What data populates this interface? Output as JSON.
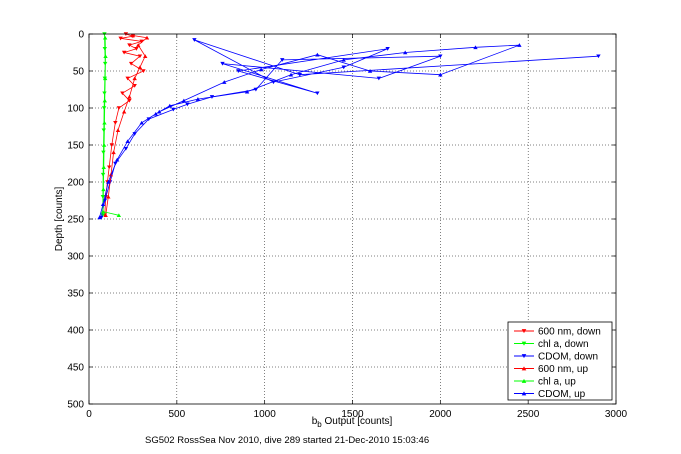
{
  "chart_data": {
    "type": "scatter",
    "title": "",
    "xlabel_main": "b",
    "xlabel_sub": "b",
    "xlabel_rest": " Output [counts]",
    "ylabel": "Depth [counts]",
    "xlim": [
      0,
      3000
    ],
    "ylim": [
      0,
      500
    ],
    "y_reversed": true,
    "grid": true,
    "legend_placement": "bottom-right",
    "x_ticks": [
      "0",
      "500",
      "1000",
      "1500",
      "2000",
      "2500",
      "3000"
    ],
    "y_ticks": [
      "0",
      "50",
      "100",
      "150",
      "200",
      "250",
      "300",
      "350",
      "400",
      "450",
      "500"
    ],
    "caption": "SG502 RossSea Nov 2010, dive 289 started 21-Dec-2010 15:03:46",
    "colors": {
      "red": "#ff0000",
      "green": "#00ff00",
      "blue": "#0000ff"
    },
    "series": [
      {
        "name": "600 nm, down",
        "color": "#ff0000",
        "marker": "triangle-down",
        "points": [
          [
            210,
            0
          ],
          [
            250,
            3
          ],
          [
            180,
            6
          ],
          [
            300,
            10
          ],
          [
            230,
            15
          ],
          [
            270,
            20
          ],
          [
            200,
            25
          ],
          [
            290,
            30
          ],
          [
            240,
            40
          ],
          [
            310,
            50
          ],
          [
            220,
            60
          ],
          [
            260,
            70
          ],
          [
            190,
            80
          ],
          [
            230,
            90
          ],
          [
            170,
            100
          ],
          [
            150,
            120
          ],
          [
            130,
            150
          ],
          [
            115,
            180
          ],
          [
            105,
            200
          ],
          [
            95,
            220
          ],
          [
            90,
            245
          ]
        ]
      },
      {
        "name": "chl a, down",
        "color": "#00ff00",
        "marker": "triangle-down",
        "points": [
          [
            88,
            0
          ],
          [
            90,
            20
          ],
          [
            92,
            40
          ],
          [
            90,
            60
          ],
          [
            88,
            80
          ],
          [
            86,
            100
          ],
          [
            84,
            130
          ],
          [
            82,
            160
          ],
          [
            80,
            190
          ],
          [
            79,
            220
          ],
          [
            78,
            245
          ]
        ]
      },
      {
        "name": "CDOM, down",
        "color": "#0000ff",
        "marker": "triangle-down",
        "points": [
          [
            2900,
            30
          ],
          [
            1200,
            55
          ],
          [
            600,
            8
          ],
          [
            1050,
            65
          ],
          [
            1450,
            45
          ],
          [
            1700,
            20
          ],
          [
            850,
            50
          ],
          [
            1300,
            80
          ],
          [
            760,
            40
          ],
          [
            1650,
            60
          ],
          [
            2000,
            30
          ],
          [
            1100,
            35
          ],
          [
            950,
            75
          ],
          [
            700,
            85
          ],
          [
            560,
            95
          ],
          [
            480,
            102
          ],
          [
            340,
            115
          ],
          [
            260,
            135
          ],
          [
            210,
            155
          ],
          [
            150,
            175
          ],
          [
            120,
            200
          ],
          [
            90,
            225
          ],
          [
            70,
            248
          ]
        ]
      },
      {
        "name": "600 nm, up",
        "color": "#ff0000",
        "marker": "triangle-up",
        "points": [
          [
            95,
            245
          ],
          [
            110,
            220
          ],
          [
            125,
            190
          ],
          [
            140,
            160
          ],
          [
            165,
            130
          ],
          [
            200,
            105
          ],
          [
            230,
            85
          ],
          [
            260,
            60
          ],
          [
            290,
            45
          ],
          [
            320,
            30
          ],
          [
            280,
            15
          ],
          [
            330,
            5
          ],
          [
            250,
            2
          ]
        ]
      },
      {
        "name": "chl a, up",
        "color": "#00ff00",
        "marker": "triangle-up",
        "points": [
          [
            170,
            245
          ],
          [
            80,
            240
          ],
          [
            82,
            210
          ],
          [
            84,
            180
          ],
          [
            86,
            150
          ],
          [
            88,
            120
          ],
          [
            90,
            90
          ],
          [
            92,
            60
          ],
          [
            94,
            30
          ],
          [
            92,
            5
          ]
        ]
      },
      {
        "name": "CDOM, up",
        "color": "#0000ff",
        "marker": "triangle-up",
        "points": [
          [
            60,
            248
          ],
          [
            80,
            230
          ],
          [
            110,
            200
          ],
          [
            160,
            170
          ],
          [
            220,
            145
          ],
          [
            300,
            120
          ],
          [
            380,
            108
          ],
          [
            460,
            97
          ],
          [
            620,
            88
          ],
          [
            900,
            78
          ],
          [
            1150,
            55
          ],
          [
            1450,
            35
          ],
          [
            1800,
            25
          ],
          [
            2200,
            18
          ],
          [
            2450,
            15
          ],
          [
            2000,
            55
          ],
          [
            1600,
            50
          ],
          [
            1300,
            28
          ],
          [
            980,
            48
          ],
          [
            770,
            65
          ],
          [
            540,
            90
          ],
          [
            400,
            105
          ]
        ]
      }
    ]
  }
}
